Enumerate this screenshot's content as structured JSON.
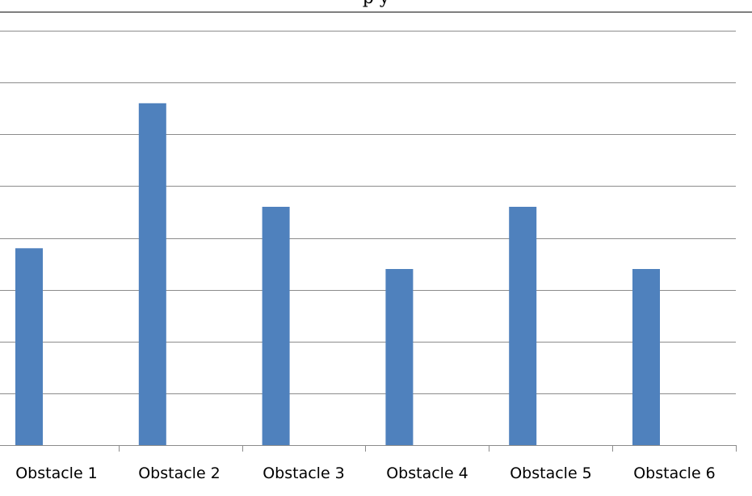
{
  "chart_data": {
    "type": "bar",
    "title": "",
    "title_visible_fragment": "p y",
    "categories": [
      "Obstacle 1",
      "Obstacle 2",
      "Obstacle 3",
      "Obstacle 4",
      "Obstacle 5",
      "Obstacle 6"
    ],
    "series": [
      {
        "values": [
          3.8,
          6.6,
          4.6,
          3.4,
          4.6,
          3.4
        ],
        "color": "#4f81bd"
      }
    ],
    "ylim": [
      0,
      8
    ],
    "gridlines": true,
    "gridline_color": "#8c8c8c",
    "xlabel": "",
    "ylabel": ""
  }
}
